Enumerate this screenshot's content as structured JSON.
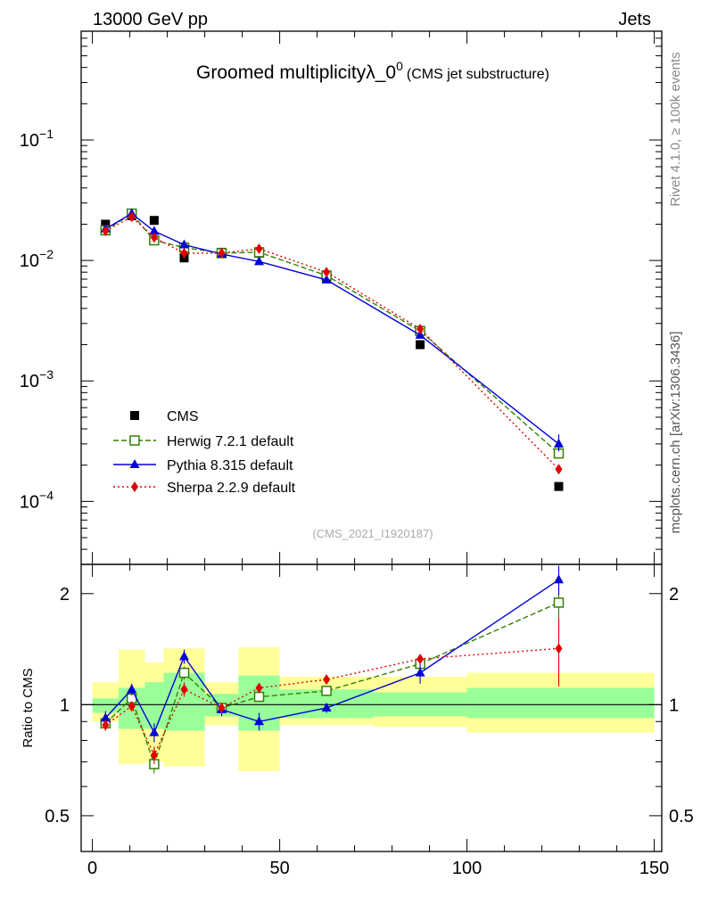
{
  "header": {
    "left": "13000 GeV pp",
    "right": "Jets"
  },
  "side_labels": {
    "rivet": "Rivet 4.1.0, ≥ 100k events",
    "mcplots": "mcplots.cern.ch [arXiv:1306.3436]"
  },
  "colors": {
    "data": "#000000",
    "herwig": "#338000",
    "pythia": "#0000dd",
    "sherpa": "#e00000",
    "band_inner": "#99ff99",
    "band_outer": "#ffff99"
  },
  "chart_data": [
    {
      "type": "scatter",
      "panel": "main",
      "title": "Groomed multiplicityλ_0",
      "title_sup": "0",
      "subtitle": "(CMS jet substructure)",
      "watermark": "(CMS_2021_I1920187)",
      "yscale": "log",
      "xlim": [
        -3,
        152
      ],
      "ylim": [
        3e-05,
        0.8
      ],
      "y_tick_labels": [
        {
          "value": 0.1,
          "base": "10",
          "exp": "−1"
        },
        {
          "value": 0.01,
          "base": "10",
          "exp": "−2"
        },
        {
          "value": 0.001,
          "base": "10",
          "exp": "−3"
        },
        {
          "value": 0.0001,
          "base": "10",
          "exp": "−4"
        }
      ],
      "legend_position": "lower-left",
      "series": [
        {
          "name": "CMS",
          "key": "data",
          "x": [
            3.5,
            10.5,
            16.5,
            24.5,
            34.5,
            44.5,
            62.5,
            87.5,
            124.5
          ],
          "y": [
            0.02,
            0.0235,
            0.0215,
            0.0105,
            0.0117,
            0.0115,
            0.0072,
            0.002,
            0.000133
          ]
        },
        {
          "name": "Herwig 7.2.1 default",
          "key": "herwig",
          "x": [
            3.5,
            10.5,
            16.5,
            24.5,
            34.5,
            44.5,
            62.5,
            87.5,
            124.5
          ],
          "y": [
            0.0178,
            0.0245,
            0.0147,
            0.0128,
            0.0115,
            0.0117,
            0.0075,
            0.0026,
            0.00025
          ]
        },
        {
          "name": "Pythia 8.315 default",
          "key": "pythia",
          "x": [
            3.5,
            10.5,
            16.5,
            24.5,
            34.5,
            44.5,
            62.5,
            87.5,
            124.5
          ],
          "y": [
            0.0183,
            0.0245,
            0.0175,
            0.0135,
            0.0113,
            0.0098,
            0.0069,
            0.0024,
            0.0003
          ]
        },
        {
          "name": "Sherpa 2.2.9 default",
          "key": "sherpa",
          "x": [
            3.5,
            10.5,
            16.5,
            24.5,
            34.5,
            44.5,
            62.5,
            87.5,
            124.5
          ],
          "y": [
            0.0176,
            0.023,
            0.0155,
            0.0115,
            0.0115,
            0.0125,
            0.008,
            0.0027,
            0.000185
          ]
        }
      ]
    },
    {
      "type": "scatter",
      "panel": "ratio",
      "ylabel": "Ratio to CMS",
      "yscale": "log",
      "xlim": [
        -3,
        152
      ],
      "ylim": [
        0.4,
        2.4
      ],
      "x_tick_labels": [
        {
          "value": 0,
          "label": "0"
        },
        {
          "value": 50,
          "label": "50"
        },
        {
          "value": 100,
          "label": "100"
        },
        {
          "value": 150,
          "label": "150"
        }
      ],
      "y_tick_labels": [
        {
          "value": 0.5,
          "label": "0.5"
        },
        {
          "value": 1,
          "label": "1"
        },
        {
          "value": 2,
          "label": "2"
        }
      ],
      "bands": [
        {
          "x0": 0,
          "x1": 7,
          "inner": [
            0.95,
            1.04
          ],
          "outer": [
            0.9,
            1.15
          ]
        },
        {
          "x0": 7,
          "x1": 14,
          "inner": [
            0.86,
            1.11
          ],
          "outer": [
            0.69,
            1.41
          ]
        },
        {
          "x0": 14,
          "x1": 19,
          "inner": [
            0.86,
            1.15
          ],
          "outer": [
            0.7,
            1.3
          ]
        },
        {
          "x0": 19,
          "x1": 30,
          "inner": [
            0.85,
            1.22
          ],
          "outer": [
            0.68,
            1.42
          ]
        },
        {
          "x0": 30,
          "x1": 39,
          "inner": [
            0.93,
            1.07
          ],
          "outer": [
            0.88,
            1.15
          ]
        },
        {
          "x0": 39,
          "x1": 50,
          "inner": [
            0.85,
            1.2
          ],
          "outer": [
            0.66,
            1.43
          ]
        },
        {
          "x0": 50,
          "x1": 75,
          "inner": [
            0.92,
            1.1
          ],
          "outer": [
            0.88,
            1.19
          ]
        },
        {
          "x0": 75,
          "x1": 100,
          "inner": [
            0.93,
            1.08
          ],
          "outer": [
            0.87,
            1.19
          ]
        },
        {
          "x0": 100,
          "x1": 150,
          "inner": [
            0.92,
            1.11
          ],
          "outer": [
            0.84,
            1.22
          ]
        }
      ],
      "series": [
        {
          "name": "Herwig 7.2.1 default",
          "key": "herwig",
          "x": [
            3.5,
            10.5,
            16.5,
            24.5,
            34.5,
            44.5,
            62.5,
            87.5,
            124.5
          ],
          "y": [
            0.89,
            1.04,
            0.69,
            1.22,
            0.98,
            1.05,
            1.09,
            1.29,
            1.89
          ],
          "err": [
            0.03,
            0.03,
            0.04,
            0.05,
            0.03,
            0.03,
            0.02,
            0.03,
            0.3
          ]
        },
        {
          "name": "Pythia 8.315 default",
          "key": "pythia",
          "x": [
            3.5,
            10.5,
            16.5,
            24.5,
            34.5,
            44.5,
            62.5,
            87.5,
            124.5
          ],
          "y": [
            0.92,
            1.1,
            0.84,
            1.35,
            0.97,
            0.9,
            0.98,
            1.22,
            2.18
          ],
          "err": [
            0.04,
            0.04,
            0.05,
            0.06,
            0.04,
            0.05,
            0.03,
            0.08,
            0.2
          ]
        },
        {
          "name": "Sherpa 2.2.9 default",
          "key": "sherpa",
          "x": [
            3.5,
            10.5,
            16.5,
            24.5,
            34.5,
            44.5,
            62.5,
            87.5,
            124.5
          ],
          "y": [
            0.88,
            0.99,
            0.73,
            1.1,
            0.98,
            1.11,
            1.17,
            1.33,
            1.42
          ],
          "err": [
            0.03,
            0.03,
            0.04,
            0.05,
            0.03,
            0.03,
            0.02,
            0.04,
            0.3
          ]
        }
      ]
    }
  ]
}
